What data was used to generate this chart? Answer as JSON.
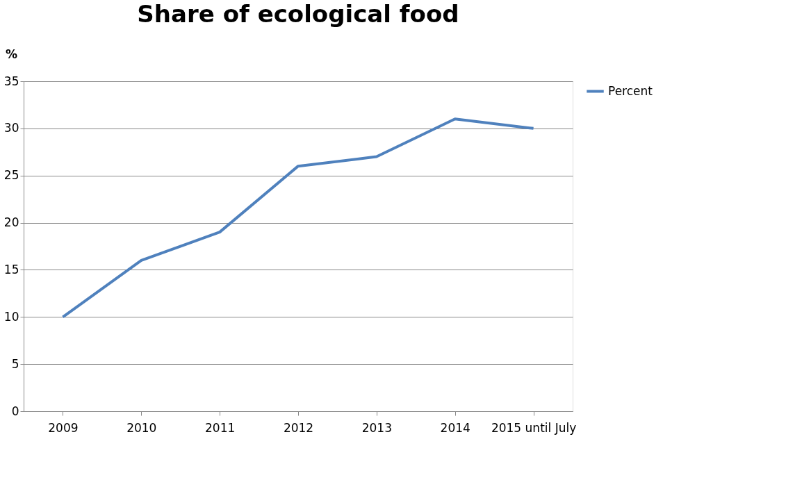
{
  "chart_data": {
    "type": "line",
    "title": "Share of ecological food",
    "ylabel": "%",
    "categories": [
      "2009",
      "2010",
      "2011",
      "2012",
      "2013",
      "2014",
      "2015 until July"
    ],
    "series": [
      {
        "name": "Percent",
        "color": "#4f81bd",
        "values": [
          10,
          16,
          19,
          26,
          27,
          31,
          30
        ]
      }
    ],
    "ylim": [
      0,
      35
    ],
    "yticks": [
      0,
      5,
      10,
      15,
      20,
      25,
      30,
      35
    ],
    "grid": "y",
    "legend": "right",
    "marker": "none",
    "line_style": "solid"
  }
}
